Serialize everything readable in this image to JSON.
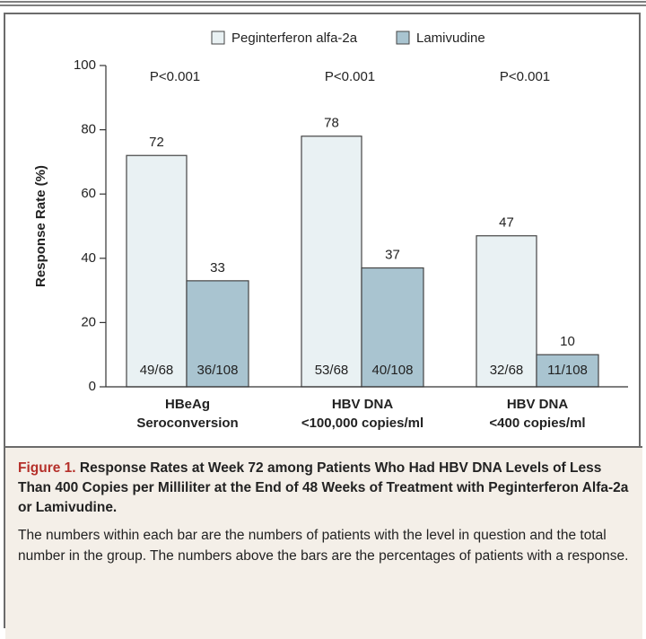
{
  "chart_data": {
    "type": "bar",
    "y_label": "Response Rate (%)",
    "categories": [
      [
        "HBeAg",
        "Seroconversion"
      ],
      [
        "HBV DNA",
        "<100,000 copies/ml"
      ],
      [
        "HBV DNA",
        "<400 copies/ml"
      ]
    ],
    "annotations": [
      "P<0.001",
      "P<0.001",
      "P<0.001"
    ],
    "series": [
      {
        "name": "Peginterferon alfa-2a",
        "color": "#e9f1f3",
        "values": [
          72,
          78,
          47
        ],
        "counts": [
          "49/68",
          "53/68",
          "32/68"
        ]
      },
      {
        "name": "Lamivudine",
        "color": "#a9c4d0",
        "values": [
          33,
          37,
          10
        ],
        "counts": [
          "36/108",
          "40/108",
          "11/108"
        ]
      }
    ],
    "ylim": [
      0,
      100
    ],
    "yticks": [
      0,
      20,
      40,
      60,
      80,
      100
    ]
  },
  "caption": {
    "label": "Figure 1.",
    "title": "Response Rates at Week 72 among Patients Who Had HBV DNA Levels of Less Than 400 Copies per Milliliter at the End of 48 Weeks of Treatment with Peginterferon Alfa-2a or Lamivudine.",
    "text": "The numbers within each bar are the numbers of patients with the level in question and the total number in the group. The numbers above the bars are the percentages of patients with a response."
  }
}
